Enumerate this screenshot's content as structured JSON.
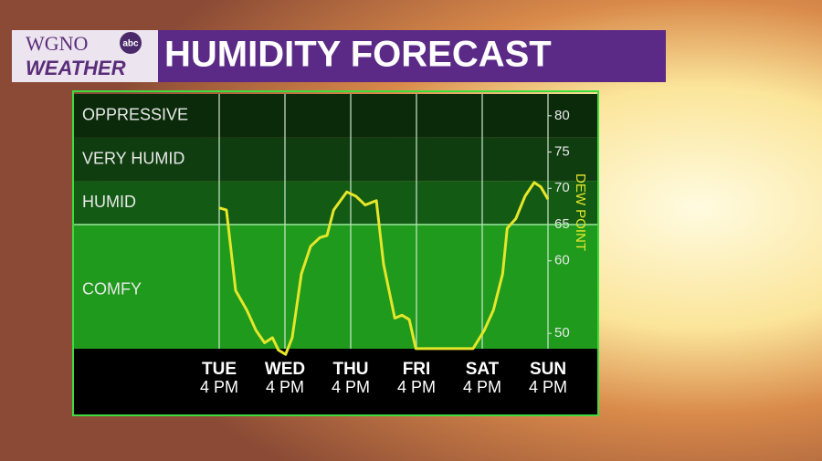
{
  "brand": {
    "station": "WGNO",
    "network": "abc",
    "sub": "WEATHER"
  },
  "chart_data": {
    "type": "line",
    "title": "HUMIDITY FORECAST",
    "y_label": "DEW POINT",
    "ylim": [
      47,
      83
    ],
    "yticks": [
      50,
      60,
      65,
      70,
      75,
      80
    ],
    "xlim": [
      0,
      5
    ],
    "xticks": [
      {
        "value": 0,
        "label": "TUE"
      },
      {
        "value": 1,
        "label": "WED"
      },
      {
        "value": 2,
        "label": "THU"
      },
      {
        "value": 3,
        "label": "FRI"
      },
      {
        "value": 4,
        "label": "SAT"
      },
      {
        "value": 5,
        "label": "SUN"
      }
    ],
    "xtick_sublabels": [
      "4 PM",
      "4 PM",
      "4 PM",
      "4 PM",
      "4 PM",
      "4 PM"
    ],
    "zones": [
      {
        "label": "OPPRESSIVE",
        "from": 77,
        "to": 83,
        "color": "#0a2a0a"
      },
      {
        "label": "VERY HUMID",
        "from": 71,
        "to": 77,
        "color": "#0f3d10"
      },
      {
        "label": "HUMID",
        "from": 65,
        "to": 71,
        "color": "#135a14"
      },
      {
        "label": "COMFY",
        "from": 47,
        "to": 65,
        "color": "#1f9a1c"
      }
    ],
    "series": [
      {
        "name": "DEW POINT",
        "color": "#e6e62a",
        "x": [
          0,
          0.11,
          0.25,
          0.42,
          0.56,
          0.69,
          0.81,
          0.9,
          1.01,
          1.11,
          1.25,
          1.39,
          1.53,
          1.64,
          1.74,
          1.94,
          2.08,
          2.22,
          2.39,
          2.5,
          2.67,
          2.78,
          2.89,
          2.99,
          3.86,
          4.03,
          4.17,
          4.31,
          4.38,
          4.51,
          4.65,
          4.79,
          4.89,
          5
        ],
        "values": [
          67.3,
          67,
          55.9,
          53.2,
          50.4,
          48.7,
          49.4,
          47.7,
          47.1,
          49.4,
          58.2,
          62,
          63.2,
          63.5,
          67,
          69.5,
          68.9,
          67.7,
          68.3,
          59.5,
          52.1,
          52.5,
          51.9,
          47.9,
          47.9,
          50.4,
          53.2,
          58.2,
          64.5,
          65.8,
          68.9,
          70.8,
          70.2,
          68.5
        ]
      }
    ]
  }
}
